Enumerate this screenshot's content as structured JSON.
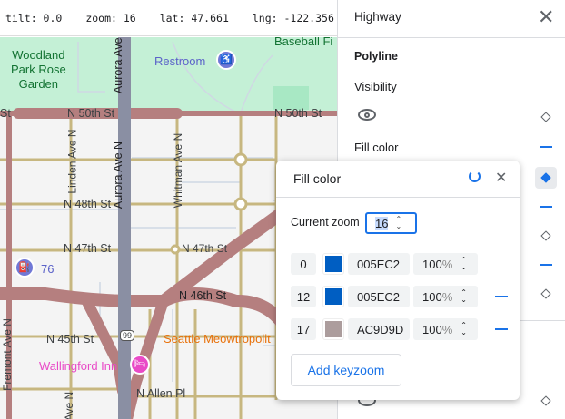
{
  "status": {
    "tilt": "tilt: 0.0",
    "zoom": "zoom: 16",
    "lat": "lat: 47.661",
    "lng": "lng: -122.356"
  },
  "map": {
    "labels": {
      "park": [
        "Woodland",
        "Park Rose",
        "Garden"
      ],
      "restroom": "Restroom",
      "baseball": "Baseball Fi",
      "n50a": "N 50th St",
      "n50b": "N 50th St",
      "st_left": "St",
      "aurora1": "Aurora Ave N",
      "aurora2": "Aurora Ave N",
      "linden": "Linden Ave N",
      "whitman": "Whitman Ave N",
      "n48": "N 48th St",
      "n47a": "N 47th St",
      "n47b": "N 47th St",
      "gas": "76",
      "n46": "N 46th St",
      "n45": "N 45th St",
      "hwy": "99",
      "meow": "Seattle Meowtropolit",
      "inn": "Wallingford Inn",
      "fremont": "Fremont Ave N",
      "allen": "N Allen Pl",
      "ave_n": "Ave N"
    },
    "colors": {
      "park": "#c4f0d6",
      "highway": "#b57f7f",
      "arterial": "#c7b780",
      "aurora": "#8a8fa3",
      "poi": "#7078d6",
      "lodging": "#e94ac7",
      "food": "#e8710a"
    }
  },
  "panel": {
    "title": "Highway",
    "section": "Polyline",
    "visibility_label": "Visibility",
    "fill_color_label": "Fill color"
  },
  "popup": {
    "title": "Fill color",
    "current_zoom_label": "Current zoom",
    "current_zoom": "16",
    "keyzooms": [
      {
        "zoom": "0",
        "hex": "005EC2",
        "color": "#005EC2",
        "opacity": "100",
        "unit": "%"
      },
      {
        "zoom": "12",
        "hex": "005EC2",
        "color": "#005EC2",
        "opacity": "100",
        "unit": "%"
      },
      {
        "zoom": "17",
        "hex": "AC9D9D",
        "color": "#AC9D9D",
        "opacity": "100",
        "unit": "%"
      }
    ],
    "add_label": "Add keyzoom"
  },
  "accent": "#1a73e8"
}
